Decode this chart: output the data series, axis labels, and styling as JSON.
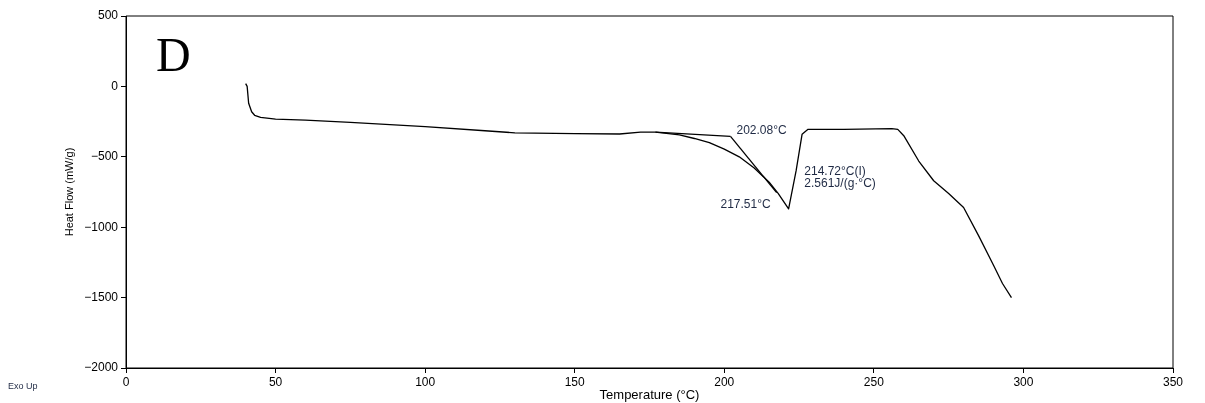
{
  "chart_data": {
    "type": "line",
    "xlabel": "Temperature (°C)",
    "ylabel": "Heat Flow (mW/g)",
    "xlim": [
      0,
      350
    ],
    "xticks": [
      0,
      50,
      100,
      150,
      200,
      250,
      300,
      350
    ],
    "ylim": [
      -2000,
      500
    ],
    "yticks": [
      500,
      0,
      -500,
      -1000,
      -1500,
      -2000
    ],
    "grid": false,
    "legend": false,
    "marker": "none",
    "line_style": "solid",
    "series": [
      {
        "color": "#000000",
        "x": [
          40,
          40.5,
          41,
          42,
          43,
          45,
          50,
          60,
          75,
          100,
          120,
          130,
          150,
          165,
          172,
          177,
          185,
          190,
          195,
          200,
          205,
          210,
          215,
          218,
          221.5,
          224,
          226,
          228,
          240,
          256,
          258,
          260,
          265,
          270,
          275,
          280,
          285,
          290,
          293,
          296
        ],
        "values": [
          20,
          0,
          -120,
          -180,
          -205,
          -220,
          -232,
          -240,
          -255,
          -285,
          -315,
          -330,
          -335,
          -338,
          -325,
          -325,
          -345,
          -370,
          -400,
          -445,
          -500,
          -580,
          -680,
          -760,
          -870,
          -600,
          -340,
          -305,
          -305,
          -300,
          -305,
          -350,
          -530,
          -670,
          -760,
          -860,
          -1060,
          -1270,
          -1400,
          -1500
        ]
      },
      {
        "color": "#000000",
        "x": [
          177,
          202.08
        ],
        "values": [
          -325,
          -355
        ]
      },
      {
        "color": "#000000",
        "x": [
          202.08,
          217.51
        ],
        "values": [
          -355,
          -755
        ]
      }
    ],
    "annotations": [
      "D",
      "Exo Up",
      {
        "text": "202.08°C",
        "x": 202.08,
        "y": -355
      },
      {
        "text": "217.51°C",
        "x": 217.51,
        "y": -755
      },
      {
        "text": "214.72°C(I)",
        "x": 214.72,
        "y": -660
      },
      {
        "text": "2.561J/(g·°C)",
        "x": 214.72,
        "y": -660
      }
    ]
  }
}
